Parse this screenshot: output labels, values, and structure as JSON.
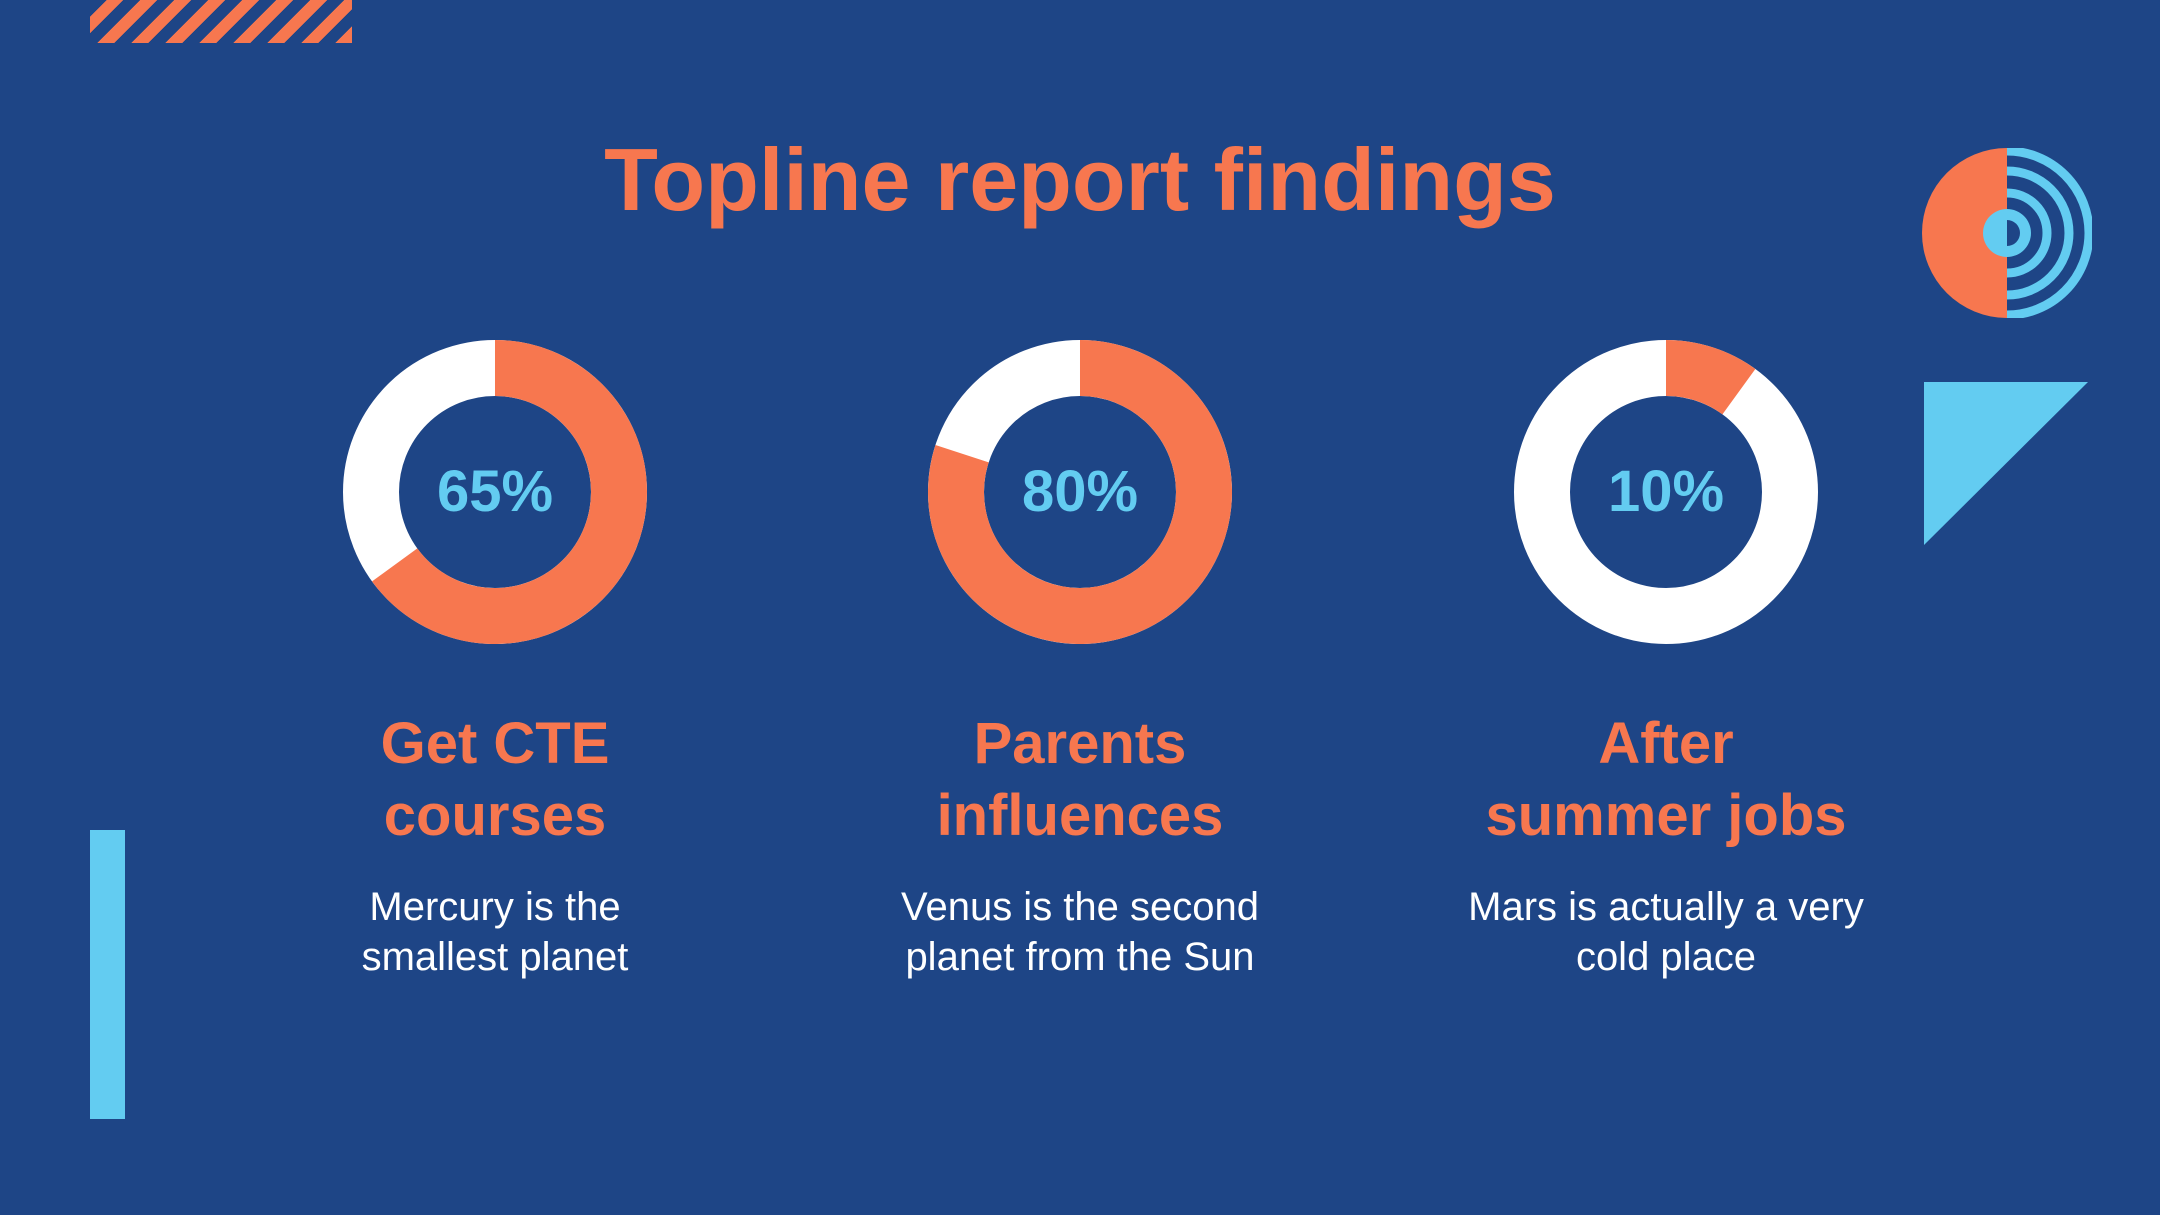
{
  "slide": {
    "title": "Topline report findings"
  },
  "colors": {
    "background": "#1e4586",
    "accent_orange": "#f7774f",
    "accent_blue": "#63ccf1",
    "remainder_white": "#ffffff"
  },
  "chart_data": {
    "type": "pie",
    "variant": "donut",
    "items": [
      {
        "label": "65%",
        "value": 65,
        "heading_lines": [
          "Get CTE",
          "courses"
        ],
        "description_lines": [
          "Mercury is the",
          "smallest planet"
        ]
      },
      {
        "label": "80%",
        "value": 80,
        "heading_lines": [
          "Parents",
          "influences"
        ],
        "description_lines": [
          "Venus is the second",
          "planet from the Sun"
        ]
      },
      {
        "label": "10%",
        "value": 10,
        "heading_lines": [
          "After",
          "summer jobs"
        ],
        "description_lines": [
          "Mars is actually a very",
          "cold place"
        ]
      }
    ]
  }
}
